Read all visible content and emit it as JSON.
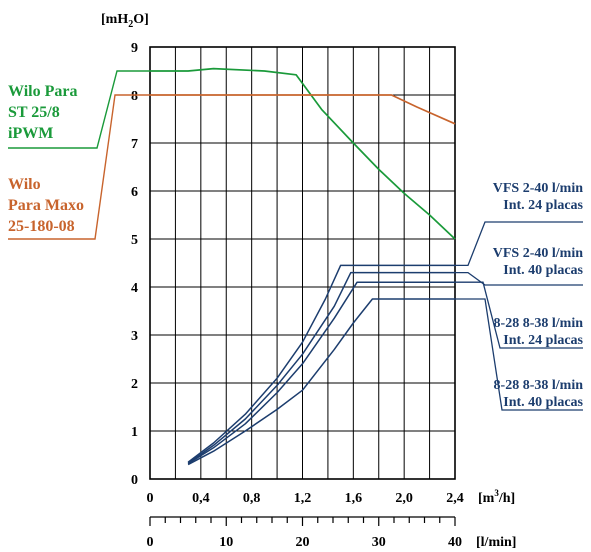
{
  "chart_data": {
    "type": "line",
    "y_unit_main": "[mH",
    "y_unit_sub": "2",
    "y_unit_end": "O]",
    "x_unit_main": "[m",
    "x_unit_sup": "3",
    "x_unit_end": "/h]",
    "x2_unit": "[l/min]",
    "xlim": [
      0,
      2.4
    ],
    "ylim": [
      0,
      9
    ],
    "x2lim": [
      0,
      40
    ],
    "x_ticks": [
      "0",
      "0,4",
      "0,8",
      "1,2",
      "1,6",
      "2,0",
      "2,4"
    ],
    "y_ticks": [
      "0",
      "1",
      "2",
      "3",
      "4",
      "5",
      "6",
      "7",
      "8",
      "9"
    ],
    "x2_ticks": [
      "0",
      "10",
      "20",
      "30",
      "40"
    ],
    "grid": true,
    "pump_curves": [
      {
        "label_lines": [
          "Wilo Para",
          "ST 25/8",
          "iPWM"
        ],
        "color": "#1a9a3a",
        "points": [
          [
            0,
            8.5
          ],
          [
            0.3,
            8.5
          ],
          [
            0.5,
            8.55
          ],
          [
            0.9,
            8.5
          ],
          [
            1.15,
            8.42
          ],
          [
            1.35,
            7.7
          ],
          [
            1.6,
            7.0
          ],
          [
            1.8,
            6.45
          ],
          [
            2.0,
            5.95
          ],
          [
            2.2,
            5.5
          ],
          [
            2.4,
            5.0
          ]
        ]
      },
      {
        "label_lines": [
          "Wilo",
          "Para Maxo",
          "25-180-08"
        ],
        "color": "#c8642d",
        "points": [
          [
            0,
            8.0
          ],
          [
            1.9,
            8.0
          ],
          [
            2.1,
            7.75
          ],
          [
            2.4,
            7.4
          ]
        ]
      }
    ],
    "exchanger_curves": [
      {
        "label_lines": [
          "VFS 2-40 l/min",
          "Int. 24 placas"
        ],
        "color": "#1c3d6e",
        "points": [
          [
            0.3,
            0.35
          ],
          [
            0.5,
            0.75
          ],
          [
            0.75,
            1.35
          ],
          [
            1.0,
            2.1
          ],
          [
            1.2,
            2.85
          ],
          [
            1.38,
            3.75
          ],
          [
            1.5,
            4.45
          ],
          [
            2.4,
            4.45
          ]
        ]
      },
      {
        "label_lines": [
          "VFS 2-40 l/min",
          "Int. 40 placas"
        ],
        "color": "#1c3d6e",
        "points": [
          [
            0.3,
            0.33
          ],
          [
            0.5,
            0.7
          ],
          [
            0.75,
            1.25
          ],
          [
            1.0,
            1.95
          ],
          [
            1.2,
            2.6
          ],
          [
            1.45,
            3.6
          ],
          [
            1.58,
            4.3
          ],
          [
            2.4,
            4.3
          ]
        ]
      },
      {
        "label_lines": [
          "8-28 8-38 l/min",
          "Int. 24 placas"
        ],
        "color": "#1c3d6e",
        "points": [
          [
            0.3,
            0.32
          ],
          [
            0.5,
            0.65
          ],
          [
            0.75,
            1.15
          ],
          [
            1.0,
            1.8
          ],
          [
            1.2,
            2.4
          ],
          [
            1.45,
            3.35
          ],
          [
            1.63,
            4.1
          ],
          [
            2.4,
            4.1
          ]
        ]
      },
      {
        "label_lines": [
          "8-28 8-38 l/min",
          "Int. 40 placas"
        ],
        "color": "#1c3d6e",
        "points": [
          [
            0.3,
            0.3
          ],
          [
            0.5,
            0.58
          ],
          [
            0.75,
            1.0
          ],
          [
            1.0,
            1.45
          ],
          [
            1.2,
            1.85
          ],
          [
            1.45,
            2.7
          ],
          [
            1.6,
            3.25
          ],
          [
            1.75,
            3.75
          ],
          [
            2.4,
            3.75
          ]
        ]
      }
    ]
  }
}
